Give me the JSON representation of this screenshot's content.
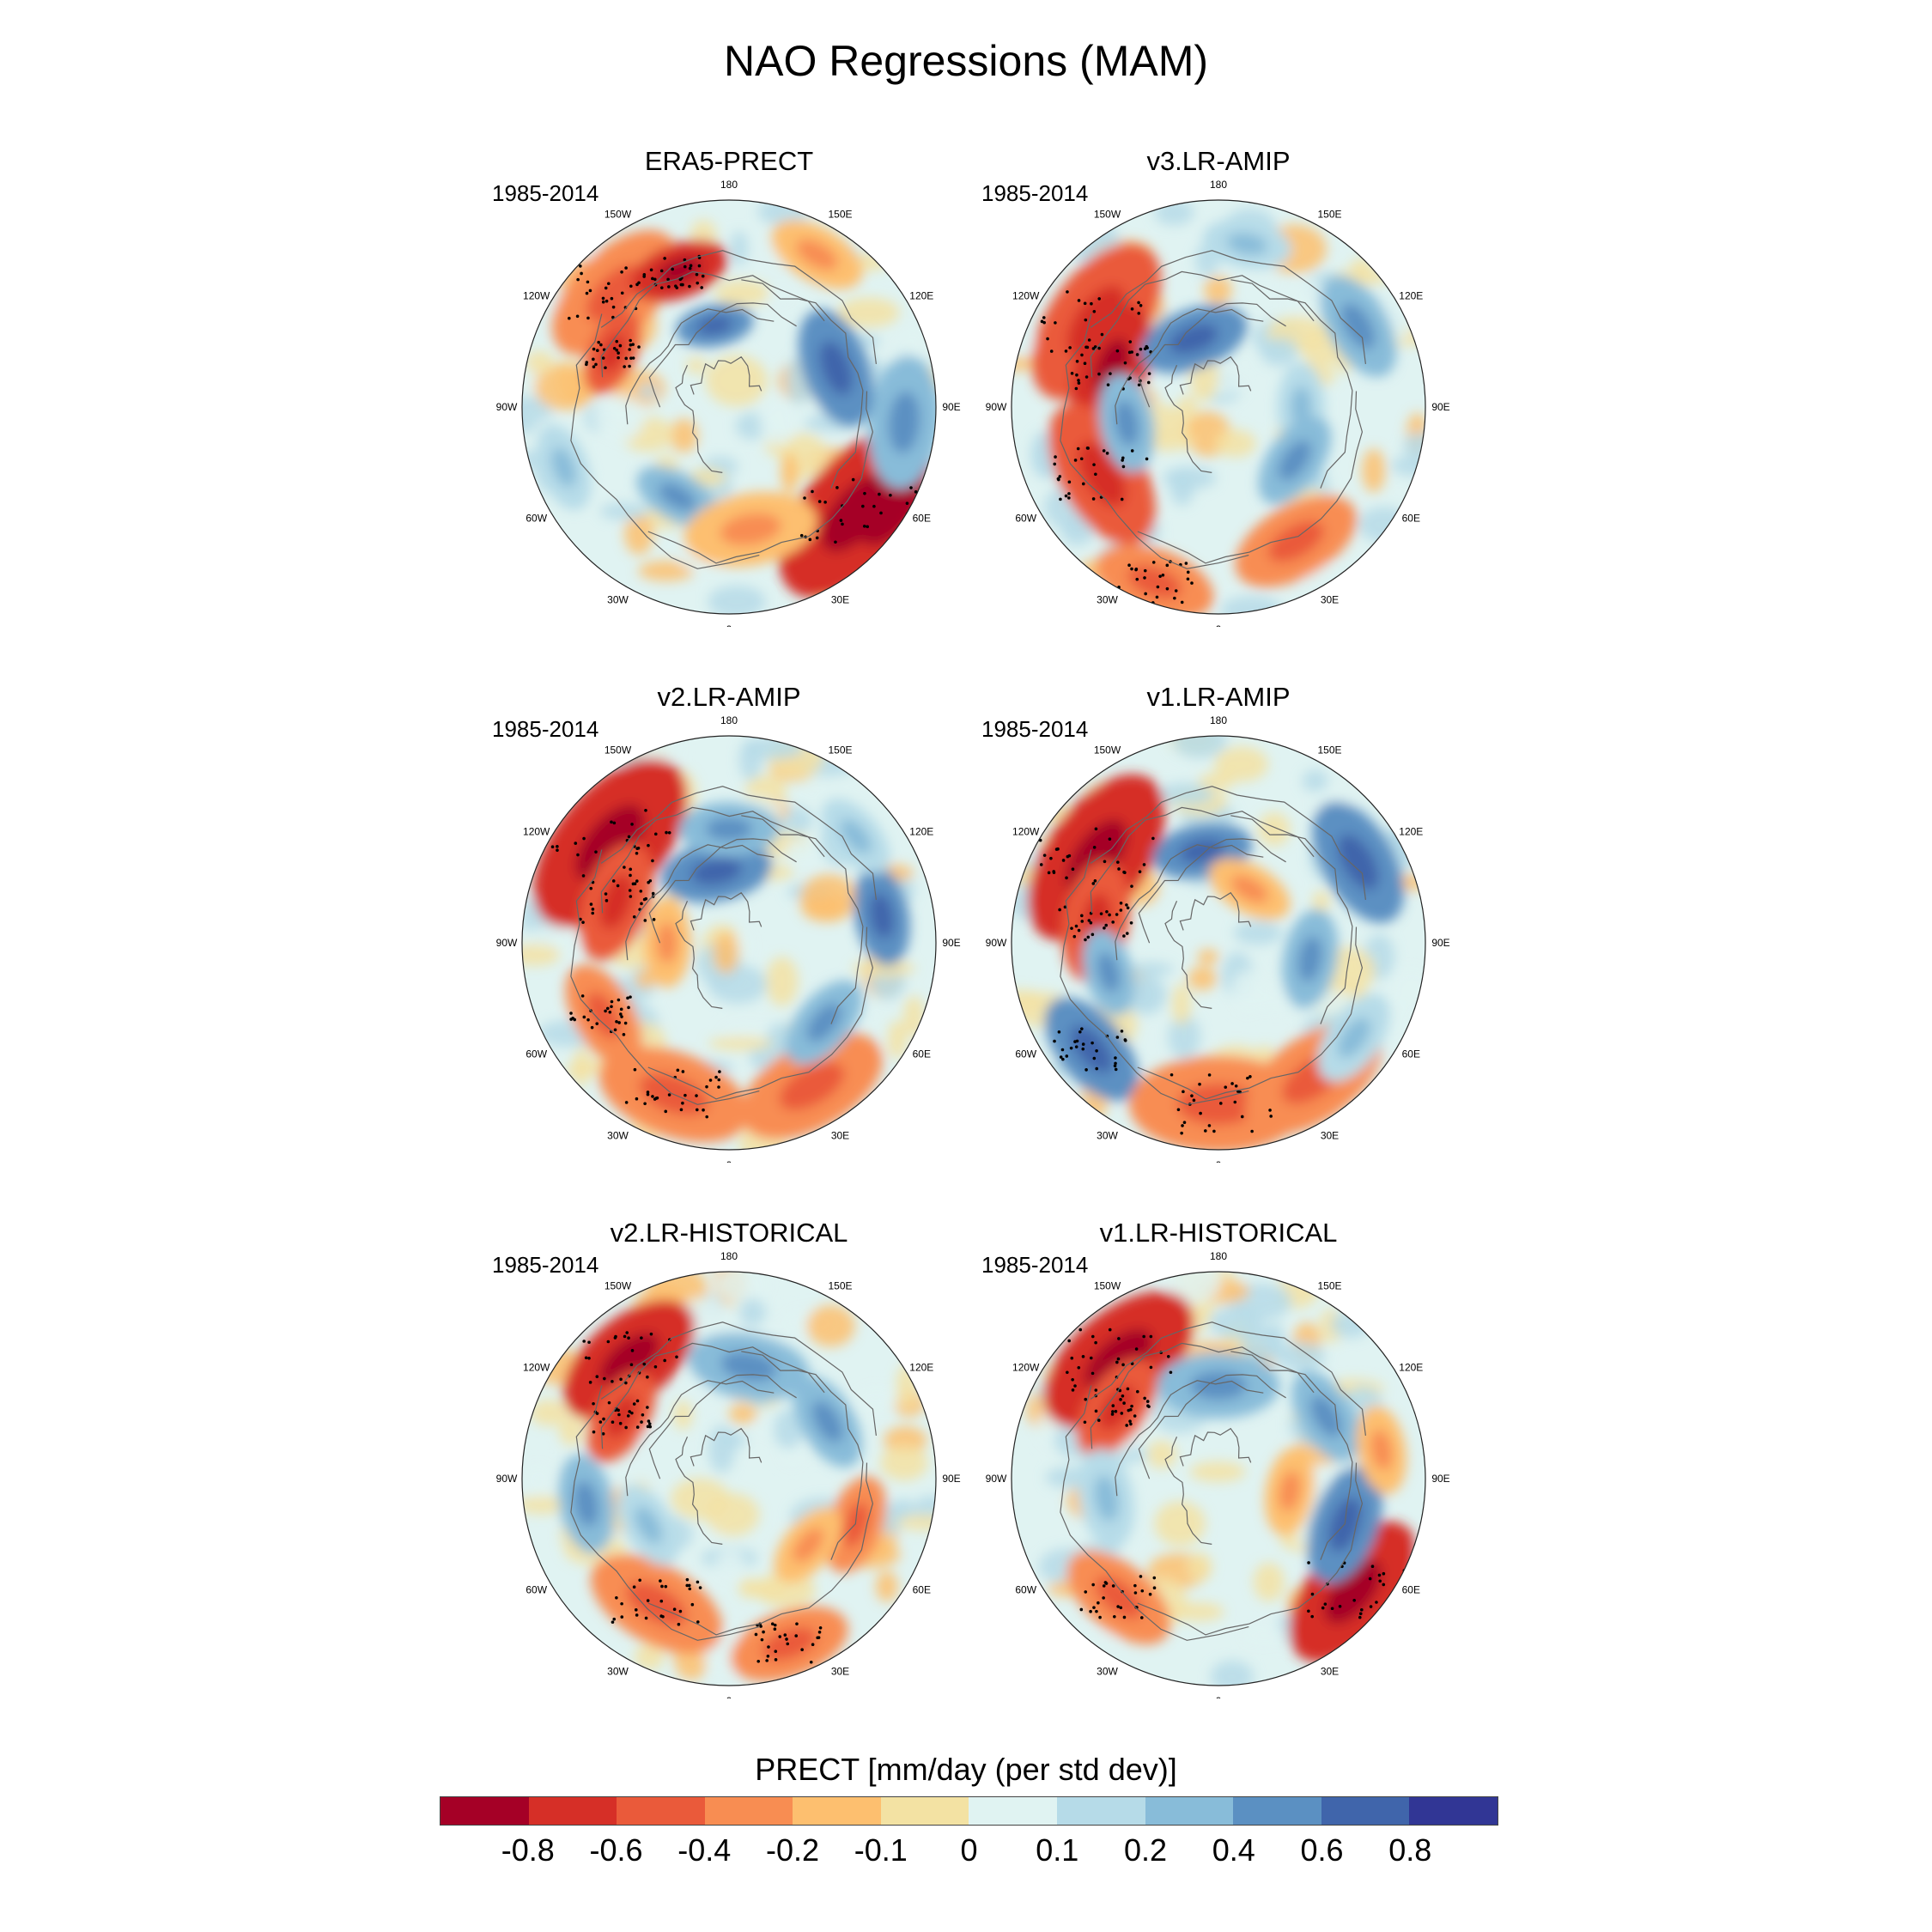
{
  "title": "NAO Regressions (MAM)",
  "colorbar": {
    "label": "PRECT [mm/day (per std dev)]",
    "colors": [
      "#a50026",
      "#d62f27",
      "#ea5a3a",
      "#f88d52",
      "#fdbf6f",
      "#f3e2a3",
      "#e0f3f2",
      "#b6dbe8",
      "#88bcd9",
      "#5b90c2",
      "#4065ab",
      "#313695"
    ],
    "ticks": [
      "-0.8",
      "-0.6",
      "-0.4",
      "-0.2",
      "-0.1",
      "0",
      "0.1",
      "0.2",
      "0.4",
      "0.6",
      "0.8"
    ]
  },
  "longitude_labels": [
    "180",
    "150E",
    "120E",
    "90E",
    "60E",
    "30E",
    "0",
    "30W",
    "60W",
    "90W",
    "120W",
    "150W"
  ],
  "panels": [
    {
      "title": "ERA5-PRECT",
      "period": "1985-2014"
    },
    {
      "title": "v3.LR-AMIP",
      "period": "1985-2014"
    },
    {
      "title": "v2.LR-AMIP",
      "period": "1985-2014"
    },
    {
      "title": "v1.LR-AMIP",
      "period": "1985-2014"
    },
    {
      "title": "v2.LR-HISTORICAL",
      "period": "1985-2014"
    },
    {
      "title": "v1.LR-HISTORICAL",
      "period": "1985-2014"
    }
  ]
}
